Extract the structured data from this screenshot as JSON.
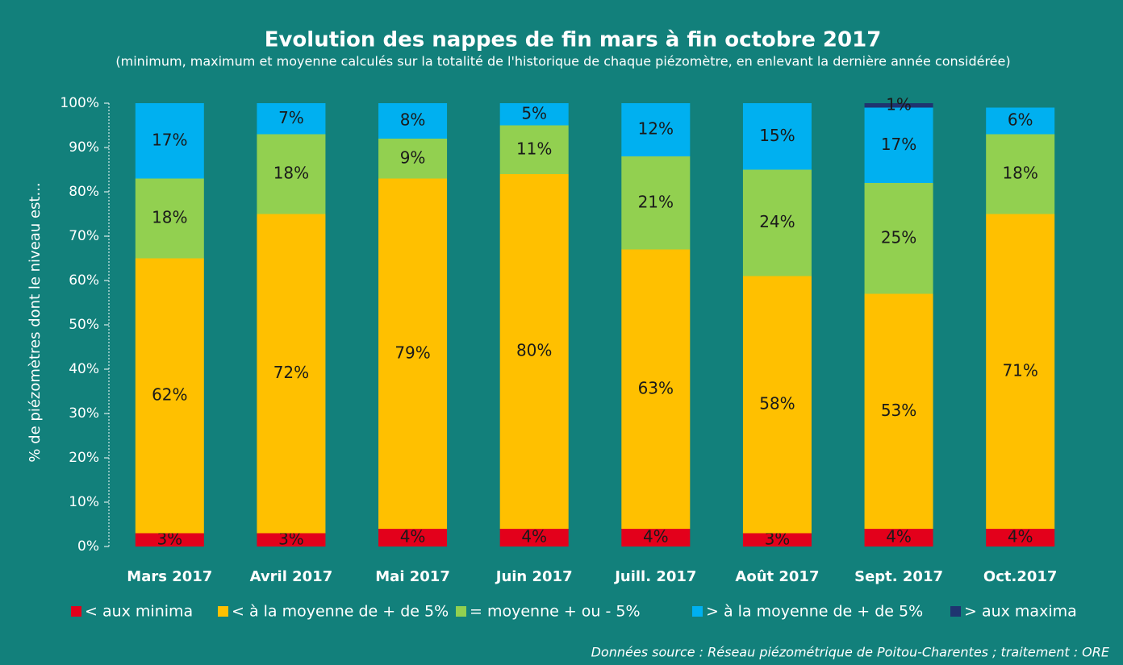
{
  "chart_data": {
    "type": "stacked_bar",
    "title": "Evolution des nappes de fin mars à fin octobre 2017",
    "subtitle": "(minimum, maximum et moyenne  calculés sur la totalité de l'historique de chaque piézomètre, en enlevant la dernière année considérée)",
    "ylabel": "% de piézomètres dont le niveau est...",
    "source": "Données source : Réseau piézométrique de Poitou-Charentes ; traitement : ORE",
    "categories": [
      "Mars 2017",
      "Avril 2017",
      "Mai 2017",
      "Juin 2017",
      "Juill. 2017",
      "Août 2017",
      "Sept. 2017",
      "Oct.2017"
    ],
    "series": [
      {
        "name": "< aux minima",
        "color": "#e3001b",
        "values": [
          3,
          3,
          4,
          4,
          4,
          3,
          4,
          4
        ],
        "value_labels": [
          "3%",
          "3%",
          "4%",
          "4%",
          "4%",
          "3%",
          "4%",
          "4%"
        ]
      },
      {
        "name": "< à la moyenne de + de 5%",
        "color": "#ffc000",
        "values": [
          62,
          72,
          79,
          80,
          63,
          58,
          53,
          71
        ],
        "value_labels": [
          "62%",
          "72%",
          "79%",
          "80%",
          "63%",
          "58%",
          "53%",
          "71%"
        ]
      },
      {
        "name": "= moyenne + ou - 5%",
        "color": "#92d050",
        "values": [
          18,
          18,
          9,
          11,
          21,
          24,
          25,
          18
        ],
        "value_labels": [
          "18%",
          "18%",
          "9%",
          "11%",
          "21%",
          "24%",
          "25%",
          "18%"
        ]
      },
      {
        "name": "> à la moyenne de + de 5%",
        "color": "#00b0f0",
        "values": [
          17,
          7,
          8,
          5,
          12,
          15,
          17,
          6
        ],
        "value_labels": [
          "17%",
          "7%",
          "8%",
          "5%",
          "12%",
          "15%",
          "17%",
          "6%"
        ]
      },
      {
        "name": "> aux maxima",
        "color": "#1f3470",
        "values": [
          null,
          null,
          null,
          null,
          null,
          null,
          1,
          null
        ],
        "value_labels": [
          null,
          null,
          null,
          null,
          null,
          null,
          "1%",
          null
        ]
      }
    ],
    "ylim": [
      0,
      100
    ],
    "yticks": [
      {
        "value": 0,
        "label": "0%"
      },
      {
        "value": 10,
        "label": "10%"
      },
      {
        "value": 20,
        "label": "20%"
      },
      {
        "value": 30,
        "label": "30%"
      },
      {
        "value": 40,
        "label": "40%"
      },
      {
        "value": 50,
        "label": "50%"
      },
      {
        "value": 60,
        "label": "60%"
      },
      {
        "value": 70,
        "label": "70%"
      },
      {
        "value": 80,
        "label": "80%"
      },
      {
        "value": 90,
        "label": "90%"
      },
      {
        "value": 100,
        "label": "100%"
      }
    ],
    "legend": "bottom",
    "background": "#12807b"
  }
}
